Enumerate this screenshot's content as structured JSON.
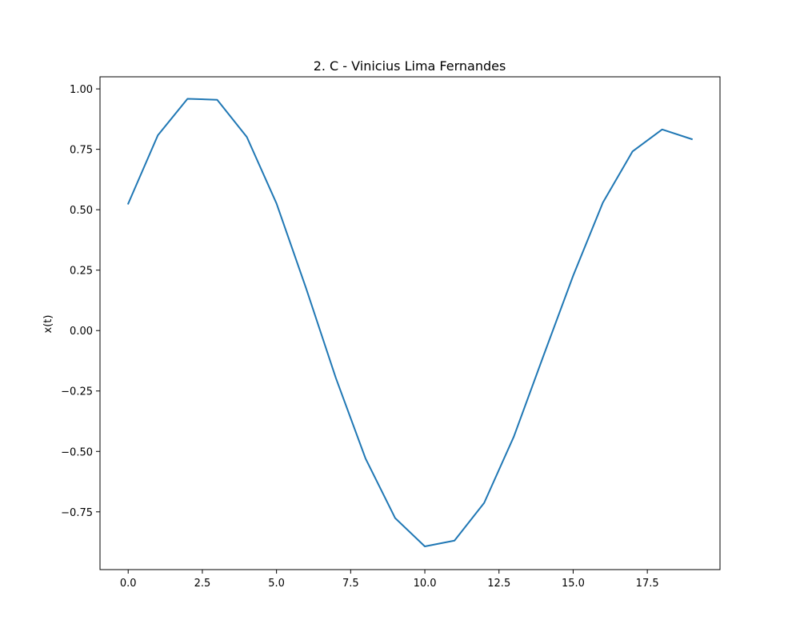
{
  "chart_data": {
    "type": "line",
    "title": "2. C - Vinicius Lima Fernandes",
    "xlabel": "",
    "ylabel": "x(t)",
    "xlim": [
      -0.95,
      19.95
    ],
    "ylim": [
      -0.989,
      1.05
    ],
    "xticks": [
      0.0,
      2.5,
      5.0,
      7.5,
      10.0,
      12.5,
      15.0,
      17.5
    ],
    "xtick_labels": [
      "0.0",
      "2.5",
      "5.0",
      "7.5",
      "10.0",
      "12.5",
      "15.0",
      "17.5"
    ],
    "yticks": [
      1.0,
      0.75,
      0.5,
      0.25,
      0.0,
      -0.25,
      -0.5,
      -0.75
    ],
    "ytick_labels": [
      "1.00",
      "0.75",
      "0.50",
      "0.25",
      "0.00",
      "−0.25",
      "−0.50",
      "−0.75"
    ],
    "grid": false,
    "series": [
      {
        "color": "#1f77b4",
        "x": [
          0,
          1,
          2,
          3,
          4,
          5,
          6,
          7,
          8,
          9,
          10,
          11,
          12,
          13,
          14,
          15,
          16,
          17,
          18,
          19
        ],
        "values": [
          0.525,
          0.808,
          0.959,
          0.955,
          0.801,
          0.526,
          0.174,
          -0.196,
          -0.529,
          -0.776,
          -0.893,
          -0.869,
          -0.713,
          -0.439,
          -0.104,
          0.227,
          0.529,
          0.741,
          0.832,
          0.792
        ]
      }
    ]
  }
}
